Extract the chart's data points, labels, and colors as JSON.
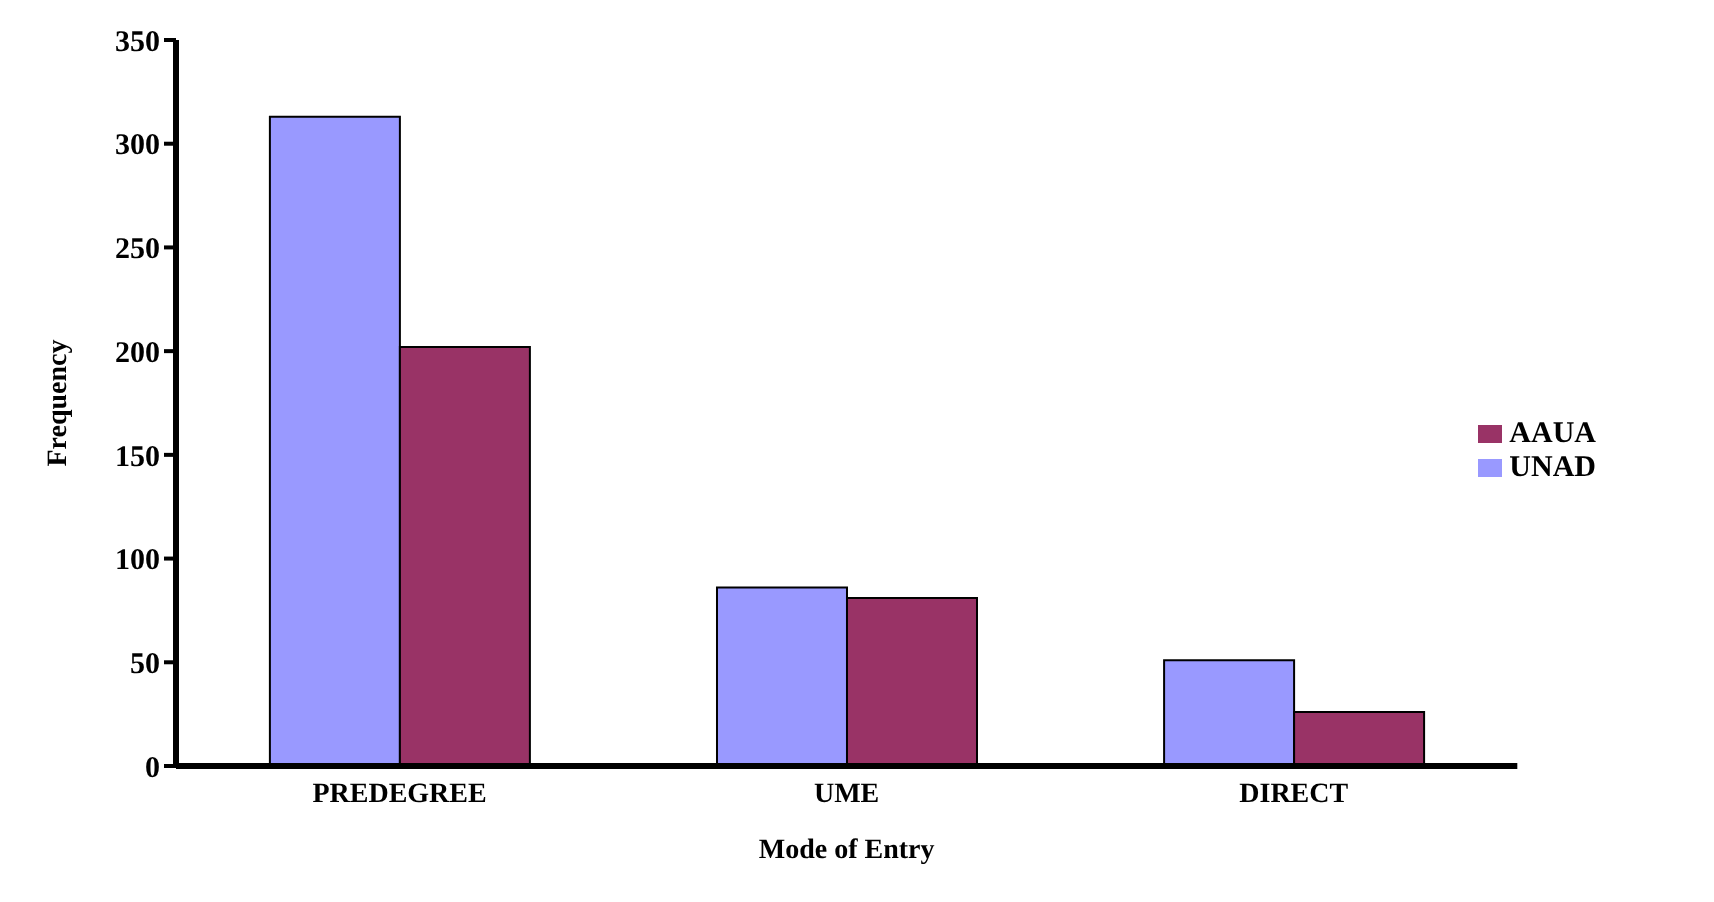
{
  "chart_data": {
    "type": "bar",
    "xlabel": "Mode of Entry",
    "ylabel": "Frequency",
    "categories": [
      "PREDEGREE",
      "UME",
      "DIRECT"
    ],
    "series": [
      {
        "name": "UNAD",
        "color": "#9999ff",
        "values": [
          313,
          86,
          51
        ]
      },
      {
        "name": "AAUA",
        "color": "#993366",
        "values": [
          202,
          81,
          26
        ]
      }
    ],
    "ylim": [
      0,
      350
    ],
    "yticks": [
      0,
      50,
      100,
      150,
      200,
      250,
      300,
      350
    ],
    "grid": false,
    "legend": "right"
  }
}
